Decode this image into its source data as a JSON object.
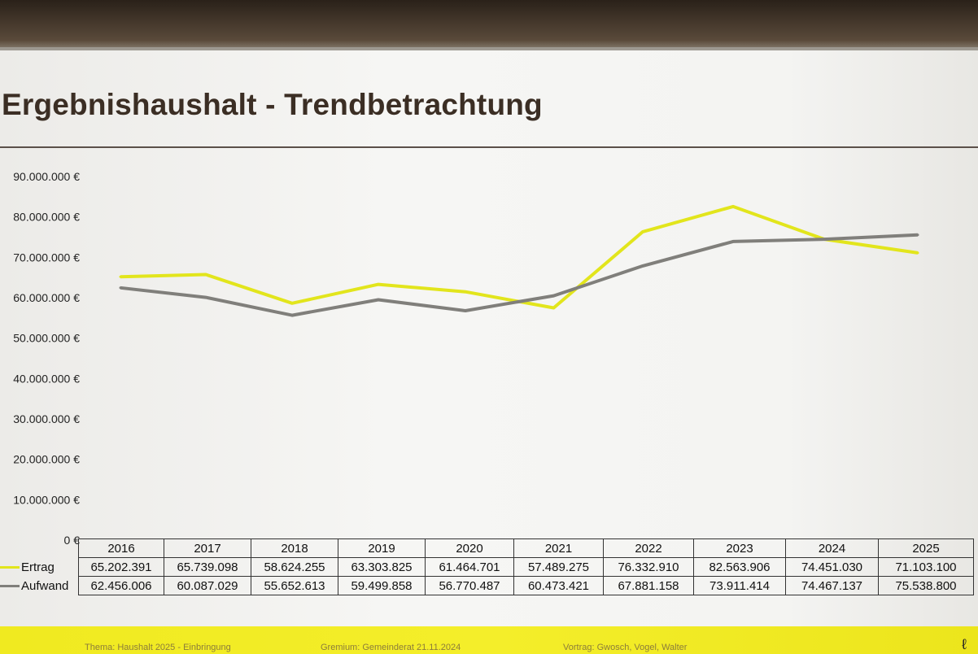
{
  "slide": {
    "title": "Ergebnishaushalt - Trendbetrachtung",
    "footer": {
      "topic": "Thema: Haushalt 2025 - Einbringung",
      "body": "Gremium: Gemeinderat 21.11.2024",
      "speakers": "Vortrag: Gwosch, Vogel, Walter"
    }
  },
  "colors": {
    "ertrag": "#e2e51c",
    "aufwand": "#807f7b",
    "footer_band": "#f0ea20"
  },
  "chart_data": {
    "type": "line",
    "title": "",
    "categories": [
      "2016",
      "2017",
      "2018",
      "2019",
      "2020",
      "2021",
      "2022",
      "2023",
      "2024",
      "2025"
    ],
    "ylim": [
      0,
      90000000
    ],
    "yticks": [
      "0 €",
      "10.000.000 €",
      "20.000.000 €",
      "30.000.000 €",
      "40.000.000 €",
      "50.000.000 €",
      "60.000.000 €",
      "70.000.000 €",
      "80.000.000 €",
      "90.000.000 €"
    ],
    "grid": false,
    "legend": "table-rows",
    "series": [
      {
        "name": "Ertrag",
        "values": [
          65202391,
          65739098,
          58624255,
          63303825,
          61464701,
          57489275,
          76332910,
          82563906,
          74451030,
          71103100
        ],
        "labels": [
          "65.202.391",
          "65.739.098",
          "58.624.255",
          "63.303.825",
          "61.464.701",
          "57.489.275",
          "76.332.910",
          "82.563.906",
          "74.451.030",
          "71.103.100"
        ]
      },
      {
        "name": "Aufwand",
        "values": [
          62456006,
          60087029,
          55652613,
          59499858,
          56770487,
          60473421,
          67881158,
          73911414,
          74467137,
          75538800
        ],
        "labels": [
          "62.456.006",
          "60.087.029",
          "55.652.613",
          "59.499.858",
          "56.770.487",
          "60.473.421",
          "67.881.158",
          "73.911.414",
          "74.467.137",
          "75.538.800"
        ]
      }
    ]
  }
}
